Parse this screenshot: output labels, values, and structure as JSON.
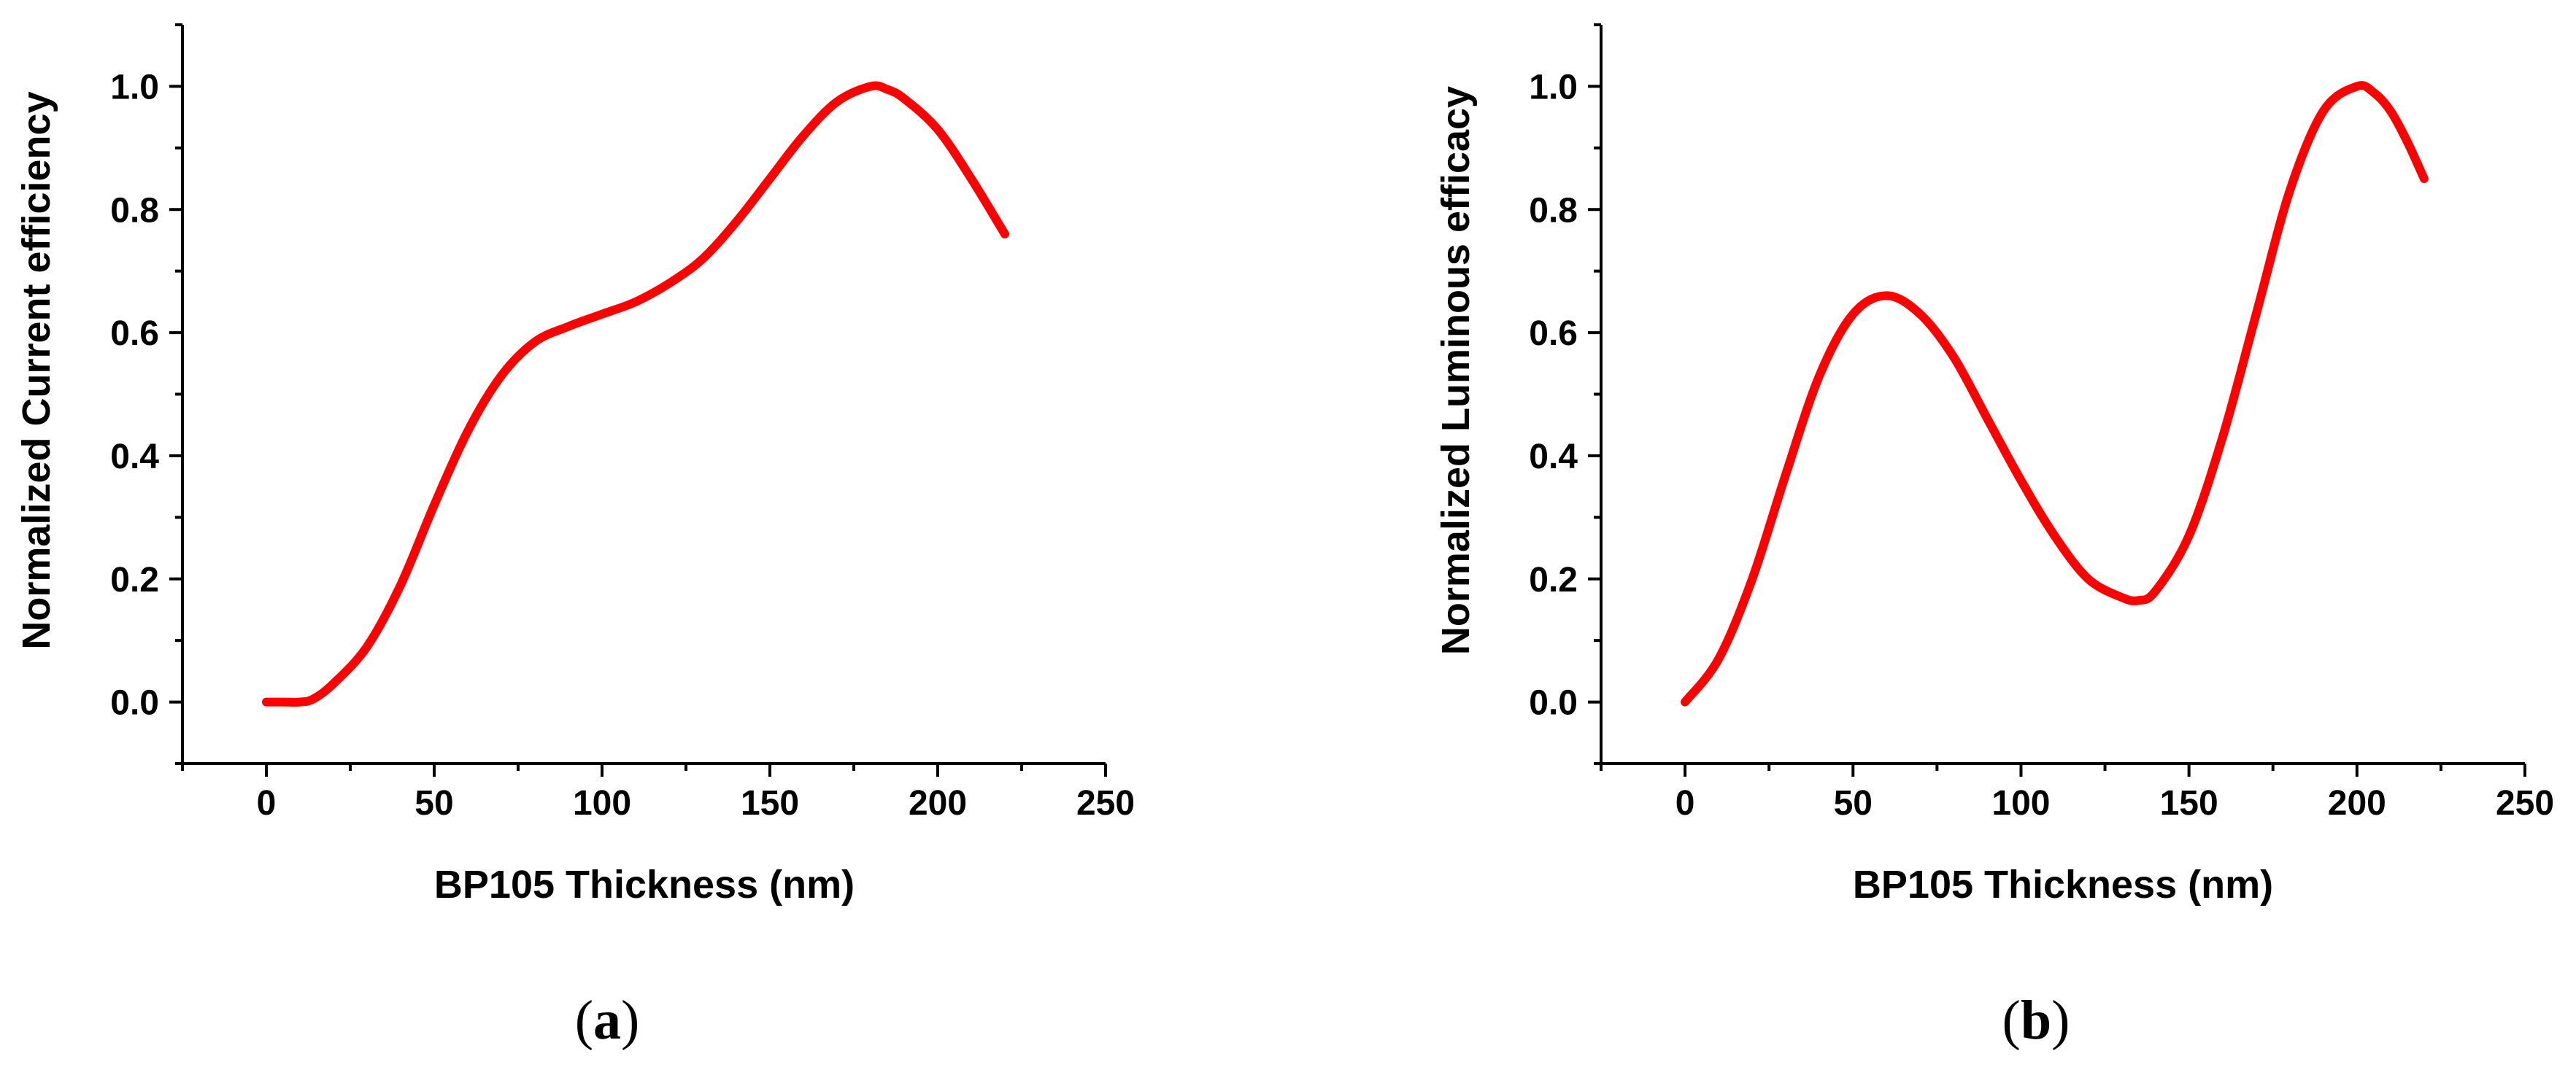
{
  "chart_data": [
    {
      "type": "line",
      "panel_label": "(a)",
      "panel_label_parts": {
        "open": "(",
        "letter": "a",
        "close": ")"
      },
      "xlabel": "BP105 Thickness (nm)",
      "ylabel": "Normalized Current efficiency",
      "xlim": [
        -25,
        250
      ],
      "ylim": [
        -0.1,
        1.1
      ],
      "xticks": [
        0,
        50,
        100,
        150,
        200,
        250
      ],
      "xtick_labels": [
        "0",
        "50",
        "100",
        "150",
        "200",
        "250"
      ],
      "yticks": [
        0.0,
        0.2,
        0.4,
        0.6,
        0.8,
        1.0
      ],
      "ytick_labels": [
        "0.0",
        "0.2",
        "0.4",
        "0.6",
        "0.8",
        "1.0"
      ],
      "grid": false,
      "color": "#ff0000",
      "series": [
        {
          "name": "Normalized Current efficiency",
          "x": [
            0,
            5,
            10,
            14,
            20,
            30,
            40,
            50,
            60,
            70,
            80,
            90,
            100,
            110,
            120,
            130,
            140,
            150,
            160,
            170,
            180,
            185,
            190,
            200,
            210,
            220
          ],
          "y": [
            0.0,
            0.0,
            0.0,
            0.005,
            0.03,
            0.09,
            0.19,
            0.32,
            0.44,
            0.53,
            0.585,
            0.61,
            0.63,
            0.65,
            0.68,
            0.72,
            0.78,
            0.85,
            0.92,
            0.975,
            1.0,
            0.995,
            0.98,
            0.93,
            0.85,
            0.76
          ]
        }
      ]
    },
    {
      "type": "line",
      "panel_label": "(b)",
      "panel_label_parts": {
        "open": "(",
        "letter": "b",
        "close": ")"
      },
      "xlabel": "BP105 Thickness (nm)",
      "ylabel": "Normalized Luminous efficacy",
      "xlim": [
        -25,
        250
      ],
      "ylim": [
        -0.1,
        1.1
      ],
      "xticks": [
        0,
        50,
        100,
        150,
        200,
        250
      ],
      "xtick_labels": [
        "0",
        "50",
        "100",
        "150",
        "200",
        "250"
      ],
      "yticks": [
        0.0,
        0.2,
        0.4,
        0.6,
        0.8,
        1.0
      ],
      "ytick_labels": [
        "0.0",
        "0.2",
        "0.4",
        "0.6",
        "0.8",
        "1.0"
      ],
      "grid": false,
      "color": "#ff0000",
      "series": [
        {
          "name": "Normalized Luminous efficacy",
          "x": [
            0,
            10,
            20,
            30,
            40,
            50,
            60,
            70,
            80,
            90,
            100,
            110,
            120,
            130,
            135,
            140,
            150,
            160,
            170,
            180,
            190,
            200,
            205,
            210,
            215,
            220
          ],
          "y": [
            0.0,
            0.07,
            0.2,
            0.37,
            0.53,
            0.63,
            0.66,
            0.63,
            0.56,
            0.46,
            0.36,
            0.27,
            0.2,
            0.17,
            0.165,
            0.18,
            0.27,
            0.43,
            0.63,
            0.83,
            0.96,
            1.0,
            0.99,
            0.96,
            0.91,
            0.85
          ]
        }
      ]
    }
  ]
}
